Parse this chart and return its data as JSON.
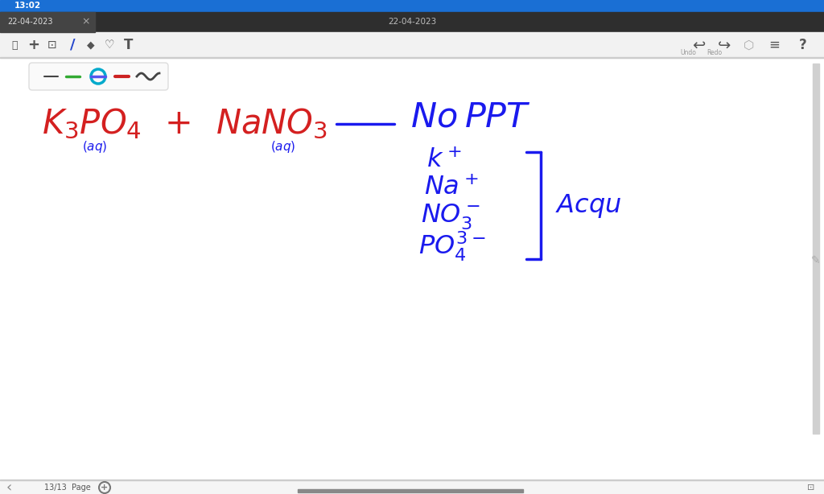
{
  "bg_color": "#ffffff",
  "status_bar_color": "#1a6fd4",
  "tab_bar_color": "#2e2e2e",
  "tab_active_color": "#444444",
  "toolbar_color": "#f2f2f2",
  "toolbar_border_color": "#cccccc",
  "time_text": "13:02",
  "date_text": "22-04-2023",
  "center_date": "22-04-2023",
  "page_text": "13/13  Page",
  "red_color": "#d42020",
  "blue_color": "#1a1aee",
  "icon_color": "#555555",
  "scroll_color": "#d0d0d0",
  "bottom_bar_color": "#f5f5f5",
  "bottom_border_color": "#cccccc"
}
